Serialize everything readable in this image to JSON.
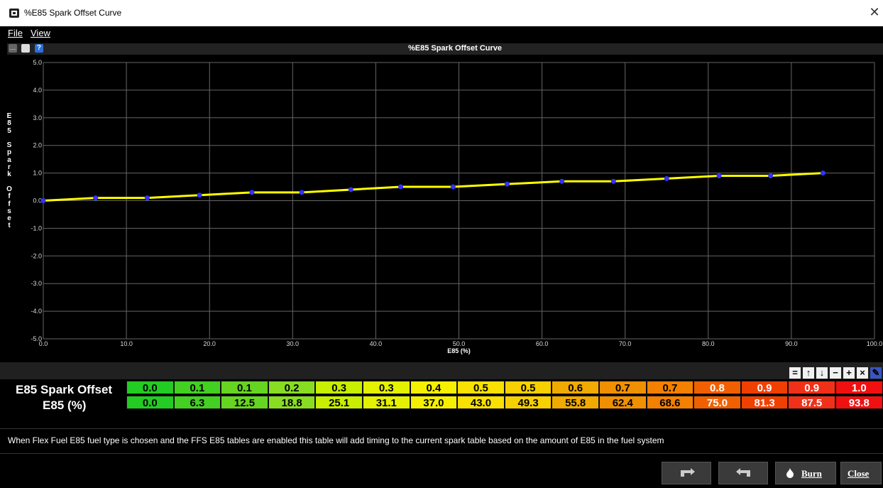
{
  "window": {
    "title": "%E85 Spark Offset Curve"
  },
  "menu": {
    "items": [
      "File",
      "View"
    ]
  },
  "chart_data": {
    "type": "line",
    "title": "%E85 Spark Offset Curve",
    "xlabel": "E85 (%)",
    "ylabel": "E85 Spark Offset",
    "xlim": [
      0,
      100
    ],
    "ylim": [
      -5,
      5
    ],
    "x_ticks": [
      "0.0",
      "10.0",
      "20.0",
      "30.0",
      "40.0",
      "50.0",
      "60.0",
      "70.0",
      "80.0",
      "90.0",
      "100.0"
    ],
    "y_ticks": [
      "5.0",
      "4.0",
      "3.0",
      "2.0",
      "1.0",
      "0.0",
      "-1.0",
      "-2.0",
      "-3.0",
      "-4.0",
      "-5.0"
    ],
    "grid": true,
    "line_color": "#ffff00",
    "point_color": "#3333ff",
    "x": [
      0.0,
      6.3,
      12.5,
      18.8,
      25.1,
      31.1,
      37.0,
      43.0,
      49.3,
      55.8,
      62.4,
      68.6,
      75.0,
      81.3,
      87.5,
      93.8
    ],
    "y": [
      0.0,
      0.1,
      0.1,
      0.2,
      0.3,
      0.3,
      0.4,
      0.5,
      0.5,
      0.6,
      0.7,
      0.7,
      0.8,
      0.9,
      0.9,
      1.0
    ]
  },
  "table": {
    "row1_label": "E85 Spark Offset",
    "row2_label": "E85 (%)",
    "row1": [
      "0.0",
      "0.1",
      "0.1",
      "0.2",
      "0.3",
      "0.3",
      "0.4",
      "0.5",
      "0.5",
      "0.6",
      "0.7",
      "0.7",
      "0.8",
      "0.9",
      "0.9",
      "1.0"
    ],
    "row2": [
      "0.0",
      "6.3",
      "12.5",
      "18.8",
      "25.1",
      "31.1",
      "37.0",
      "43.0",
      "49.3",
      "55.8",
      "62.4",
      "68.6",
      "75.0",
      "81.3",
      "87.5",
      "93.8"
    ],
    "colors": [
      "#22cc22",
      "#44d022",
      "#66d522",
      "#88dd22",
      "#c8ee00",
      "#e4f200",
      "#f4f000",
      "#f8e000",
      "#f8d000",
      "#f0aa00",
      "#f09000",
      "#f48000",
      "#f06000",
      "#f04000",
      "#f03018",
      "#f01010"
    ]
  },
  "grid_tools": [
    "equals-icon",
    "arrow-up-icon",
    "arrow-down-icon",
    "minus-icon",
    "plus-icon",
    "multiply-icon",
    "pencil-icon"
  ],
  "description": "When Flex Fuel E85 fuel type is chosen and the FFS E85 tables are enabled this table will add timing to the current spark table based on the amount of E85 in the fuel system",
  "buttons": {
    "burn": "Burn",
    "close": "Close"
  }
}
